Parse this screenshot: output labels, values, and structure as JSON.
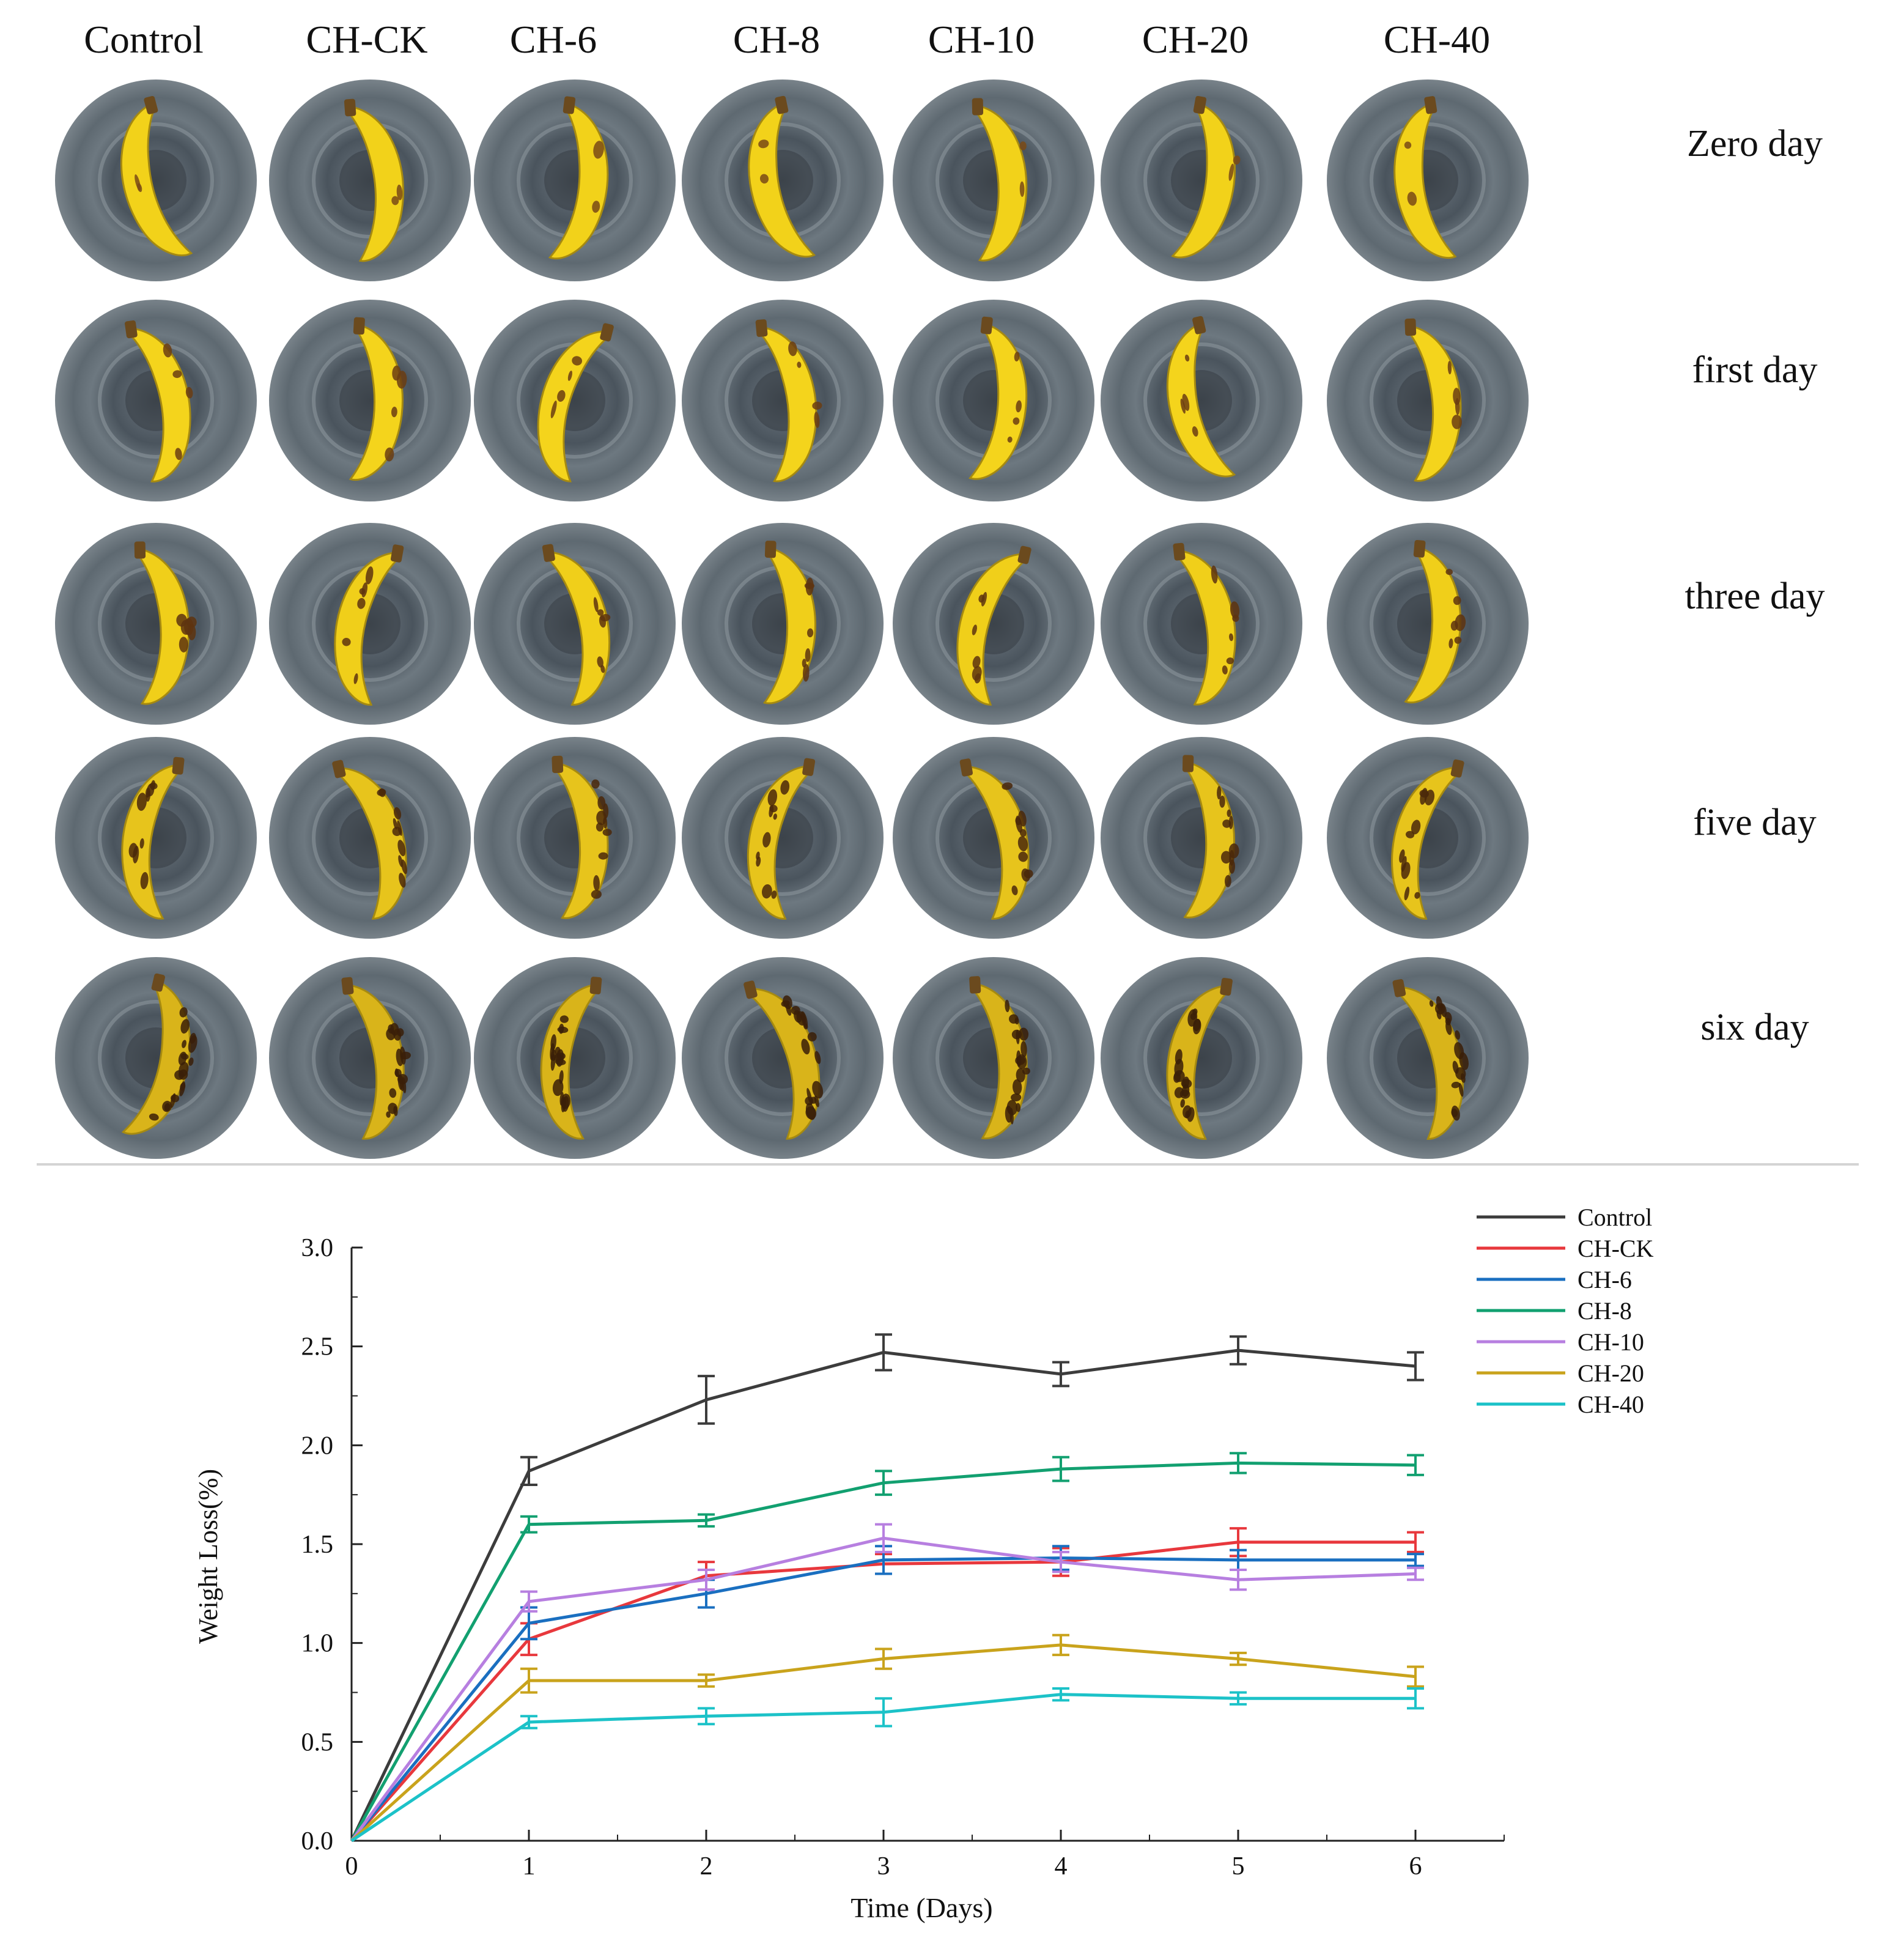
{
  "photo_grid": {
    "columns": [
      "Control",
      "CH-CK",
      "CH-6",
      "CH-8",
      "CH-10",
      "CH-20",
      "CH-40"
    ],
    "rows": [
      "Zero day",
      "first day",
      "three day",
      "five day",
      "six day"
    ],
    "image_description": "Banana on grey plastic plate, viewed from above"
  },
  "chart_data": {
    "type": "line",
    "xlabel": "Time (Days)",
    "ylabel": "Weight Loss(%)",
    "xlim": [
      0,
      6.5
    ],
    "ylim": [
      0,
      3.0
    ],
    "x_ticks": [
      "0",
      "1",
      "2",
      "3",
      "4",
      "5",
      "6"
    ],
    "y_ticks": [
      "0.0",
      "0.5",
      "1.0",
      "1.5",
      "2.0",
      "2.5",
      "3.0"
    ],
    "x": [
      0,
      1,
      2,
      3,
      4,
      5,
      6
    ],
    "legend_position": "top-right",
    "series": [
      {
        "name": "Control",
        "color": "#3c3c3c",
        "values": [
          0,
          1.87,
          2.23,
          2.47,
          2.36,
          2.48,
          2.4
        ],
        "errors": [
          0,
          0.07,
          0.12,
          0.09,
          0.06,
          0.07,
          0.07
        ]
      },
      {
        "name": "CH-CK",
        "color": "#e8383d",
        "values": [
          0,
          1.02,
          1.34,
          1.4,
          1.41,
          1.51,
          1.51
        ],
        "errors": [
          0,
          0.08,
          0.07,
          0.05,
          0.07,
          0.07,
          0.05
        ]
      },
      {
        "name": "CH-6",
        "color": "#1a6fc0",
        "values": [
          0,
          1.1,
          1.25,
          1.42,
          1.43,
          1.42,
          1.42
        ],
        "errors": [
          0,
          0.08,
          0.07,
          0.07,
          0.06,
          0.05,
          0.03
        ]
      },
      {
        "name": "CH-8",
        "color": "#12a070",
        "values": [
          0,
          1.6,
          1.62,
          1.81,
          1.88,
          1.91,
          1.9
        ],
        "errors": [
          0,
          0.04,
          0.03,
          0.06,
          0.06,
          0.05,
          0.05
        ]
      },
      {
        "name": "CH-10",
        "color": "#b77fe0",
        "values": [
          0,
          1.21,
          1.32,
          1.53,
          1.41,
          1.32,
          1.35
        ],
        "errors": [
          0,
          0.05,
          0.05,
          0.07,
          0.05,
          0.05,
          0.03
        ]
      },
      {
        "name": "CH-20",
        "color": "#c9a31c",
        "values": [
          0,
          0.81,
          0.81,
          0.92,
          0.99,
          0.92,
          0.83
        ],
        "errors": [
          0,
          0.06,
          0.03,
          0.05,
          0.05,
          0.03,
          0.05
        ]
      },
      {
        "name": "CH-40",
        "color": "#1cc2c8",
        "values": [
          0,
          0.6,
          0.63,
          0.65,
          0.74,
          0.72,
          0.72
        ],
        "errors": [
          0,
          0.03,
          0.04,
          0.07,
          0.03,
          0.03,
          0.05
        ]
      }
    ]
  }
}
